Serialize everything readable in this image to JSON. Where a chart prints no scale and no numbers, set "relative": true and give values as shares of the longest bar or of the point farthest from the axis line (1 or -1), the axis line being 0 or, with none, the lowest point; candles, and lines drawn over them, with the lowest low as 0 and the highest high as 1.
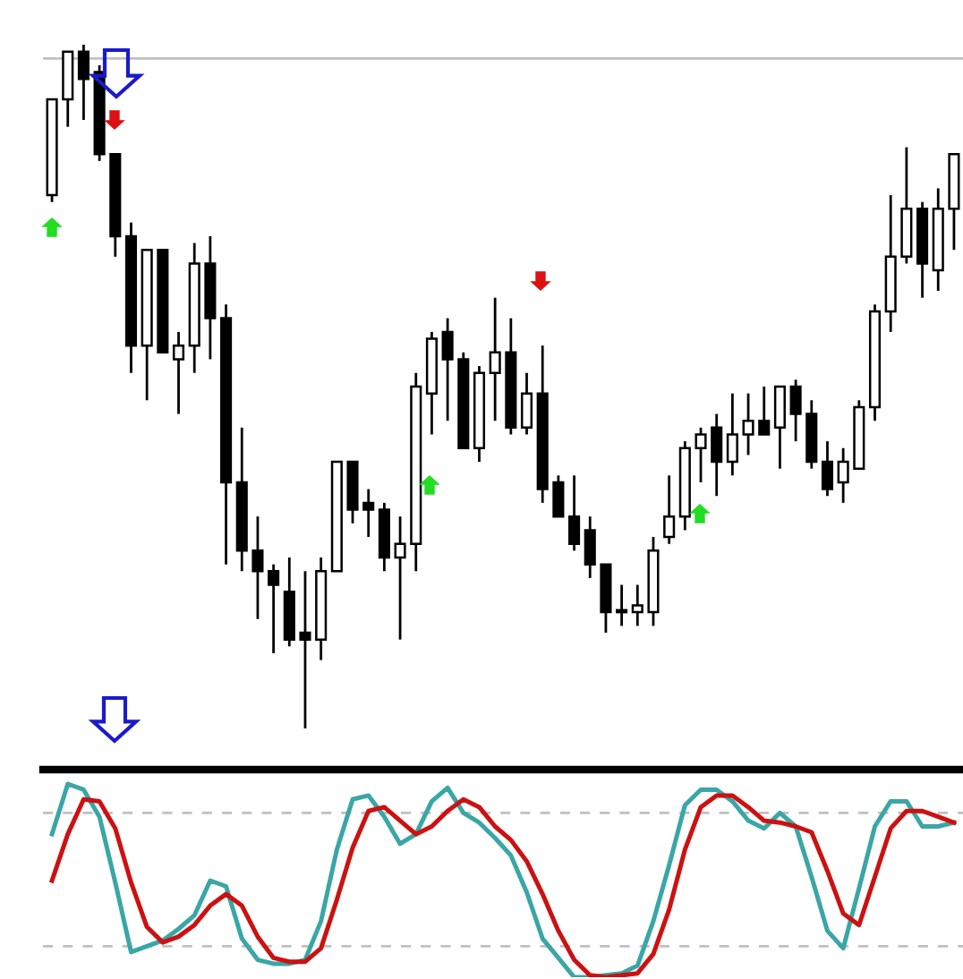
{
  "chart_data": [
    {
      "type": "candlestick",
      "relative": true,
      "categories": [
        null,
        null,
        null,
        null,
        null,
        null,
        null,
        null,
        null,
        null,
        null,
        null,
        null,
        null,
        null,
        null,
        null,
        null,
        null,
        null,
        null,
        null,
        null,
        null,
        null,
        null,
        null,
        null,
        null,
        null,
        null,
        null,
        null,
        null,
        null,
        null,
        null,
        null,
        null,
        null,
        null,
        null,
        null,
        null,
        null,
        null,
        null,
        null,
        null,
        null,
        null,
        null,
        null,
        null,
        null,
        null,
        null,
        null
      ],
      "ohlc": [
        [
          0.78,
          0.92,
          0.77,
          0.92
        ],
        [
          0.92,
          0.99,
          0.88,
          0.99
        ],
        [
          0.99,
          1.0,
          0.89,
          0.95
        ],
        [
          0.96,
          0.97,
          0.83,
          0.84
        ],
        [
          0.84,
          0.84,
          0.69,
          0.72
        ],
        [
          0.72,
          0.74,
          0.52,
          0.56
        ],
        [
          0.56,
          0.7,
          0.48,
          0.7
        ],
        [
          0.7,
          0.7,
          0.55,
          0.55
        ],
        [
          0.54,
          0.58,
          0.46,
          0.56
        ],
        [
          0.56,
          0.71,
          0.52,
          0.68
        ],
        [
          0.68,
          0.72,
          0.54,
          0.6
        ],
        [
          0.6,
          0.62,
          0.24,
          0.36
        ],
        [
          0.36,
          0.44,
          0.23,
          0.26
        ],
        [
          0.26,
          0.31,
          0.16,
          0.23
        ],
        [
          0.23,
          0.24,
          0.11,
          0.21
        ],
        [
          0.2,
          0.25,
          0.12,
          0.13
        ],
        [
          0.14,
          0.23,
          0.0,
          0.13
        ],
        [
          0.13,
          0.25,
          0.1,
          0.23
        ],
        [
          0.23,
          0.39,
          0.23,
          0.39
        ],
        [
          0.39,
          0.39,
          0.3,
          0.32
        ],
        [
          0.33,
          0.35,
          0.28,
          0.32
        ],
        [
          0.32,
          0.33,
          0.23,
          0.25
        ],
        [
          0.25,
          0.31,
          0.13,
          0.27
        ],
        [
          0.27,
          0.52,
          0.23,
          0.5
        ],
        [
          0.49,
          0.58,
          0.43,
          0.57
        ],
        [
          0.58,
          0.6,
          0.45,
          0.54
        ],
        [
          0.54,
          0.55,
          0.41,
          0.41
        ],
        [
          0.41,
          0.53,
          0.39,
          0.52
        ],
        [
          0.52,
          0.63,
          0.45,
          0.55
        ],
        [
          0.55,
          0.6,
          0.43,
          0.44
        ],
        [
          0.44,
          0.52,
          0.43,
          0.49
        ],
        [
          0.49,
          0.56,
          0.33,
          0.35
        ],
        [
          0.36,
          0.37,
          0.31,
          0.31
        ],
        [
          0.31,
          0.37,
          0.26,
          0.27
        ],
        [
          0.29,
          0.31,
          0.22,
          0.24
        ],
        [
          0.24,
          0.24,
          0.14,
          0.17
        ],
        [
          0.17,
          0.21,
          0.15,
          0.17
        ],
        [
          0.17,
          0.21,
          0.15,
          0.18
        ],
        [
          0.17,
          0.28,
          0.15,
          0.26
        ],
        [
          0.28,
          0.37,
          0.27,
          0.31
        ],
        [
          0.31,
          0.42,
          0.29,
          0.41
        ],
        [
          0.41,
          0.44,
          0.36,
          0.43
        ],
        [
          0.44,
          0.46,
          0.34,
          0.39
        ],
        [
          0.39,
          0.49,
          0.37,
          0.43
        ],
        [
          0.43,
          0.49,
          0.4,
          0.45
        ],
        [
          0.45,
          0.5,
          0.43,
          0.43
        ],
        [
          0.44,
          0.5,
          0.38,
          0.5
        ],
        [
          0.5,
          0.51,
          0.42,
          0.46
        ],
        [
          0.46,
          0.48,
          0.38,
          0.39
        ],
        [
          0.39,
          0.42,
          0.34,
          0.35
        ],
        [
          0.36,
          0.41,
          0.33,
          0.39
        ],
        [
          0.38,
          0.48,
          0.38,
          0.47
        ],
        [
          0.47,
          0.62,
          0.45,
          0.61
        ],
        [
          0.61,
          0.78,
          0.58,
          0.69
        ],
        [
          0.69,
          0.85,
          0.68,
          0.76
        ],
        [
          0.76,
          0.77,
          0.63,
          0.68
        ],
        [
          0.67,
          0.79,
          0.64,
          0.76
        ],
        [
          0.76,
          0.84,
          0.7,
          0.84
        ]
      ],
      "ref_lines": [
        {
          "axis": "y",
          "value": 0.98,
          "color": "#c0c0c0"
        }
      ]
    },
    {
      "type": "line",
      "relative": true,
      "categories": [
        null,
        null,
        null,
        null,
        null,
        null,
        null,
        null,
        null,
        null,
        null,
        null,
        null,
        null,
        null,
        null,
        null,
        null,
        null,
        null,
        null,
        null,
        null,
        null,
        null,
        null,
        null,
        null,
        null,
        null,
        null,
        null,
        null,
        null,
        null,
        null,
        null,
        null,
        null,
        null,
        null,
        null,
        null,
        null,
        null,
        null,
        null,
        null,
        null,
        null,
        null,
        null,
        null,
        null,
        null,
        null,
        null,
        null
      ],
      "series": [
        {
          "color": "#3aa6a6",
          "values": [
            0.74,
            1.0,
            0.97,
            0.83,
            0.49,
            0.13,
            0.16,
            0.19,
            0.25,
            0.32,
            0.5,
            0.47,
            0.2,
            0.09,
            0.07,
            0.07,
            0.09,
            0.29,
            0.66,
            0.92,
            0.94,
            0.83,
            0.69,
            0.74,
            0.91,
            0.98,
            0.85,
            0.8,
            0.72,
            0.63,
            0.44,
            0.2,
            0.1,
            0.0,
            0.0,
            0.01,
            0.02,
            0.06,
            0.29,
            0.58,
            0.89,
            0.97,
            0.97,
            0.91,
            0.81,
            0.77,
            0.85,
            0.78,
            0.52,
            0.24,
            0.15,
            0.46,
            0.78,
            0.91,
            0.91,
            0.78,
            0.78,
            0.8
          ]
        },
        {
          "color": "#cc1111",
          "values": [
            0.5,
            0.74,
            0.92,
            0.91,
            0.77,
            0.49,
            0.26,
            0.18,
            0.21,
            0.27,
            0.37,
            0.43,
            0.37,
            0.21,
            0.1,
            0.08,
            0.08,
            0.15,
            0.4,
            0.67,
            0.86,
            0.88,
            0.81,
            0.74,
            0.78,
            0.86,
            0.92,
            0.88,
            0.78,
            0.71,
            0.6,
            0.43,
            0.24,
            0.09,
            0.01,
            0.0,
            0.01,
            0.02,
            0.12,
            0.35,
            0.66,
            0.88,
            0.94,
            0.94,
            0.88,
            0.81,
            0.8,
            0.78,
            0.75,
            0.55,
            0.33,
            0.27,
            0.52,
            0.77,
            0.86,
            0.86,
            0.83,
            0.8
          ]
        }
      ],
      "ref_lines": [
        {
          "axis": "y",
          "value": 0.85,
          "color": "#c0c0c0",
          "line_style": "dashed"
        },
        {
          "axis": "y",
          "value": 0.16,
          "color": "#c0c0c0",
          "line_style": "dashed"
        }
      ]
    }
  ]
}
